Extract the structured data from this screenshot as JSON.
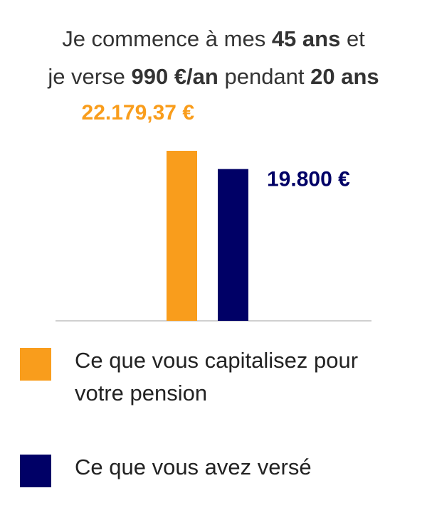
{
  "chart_data": {
    "type": "bar",
    "title": [
      [
        "Je commence à mes ",
        "45 ans",
        " et"
      ],
      [
        "je verse ",
        "990 €/an",
        " pendant ",
        "20 ans"
      ]
    ],
    "categories": [
      null
    ],
    "series": [
      {
        "name": "Ce que vous capitalisez pour votre pension",
        "color": "#f99d1c",
        "values": [
          22179.37
        ],
        "value_labels": [
          "22.179,37 €"
        ]
      },
      {
        "name": "Ce que vous avez versé",
        "color": "#000066",
        "values": [
          19800
        ],
        "value_labels": [
          "19.800 €"
        ]
      }
    ],
    "ylim": [
      0,
      25000
    ]
  }
}
